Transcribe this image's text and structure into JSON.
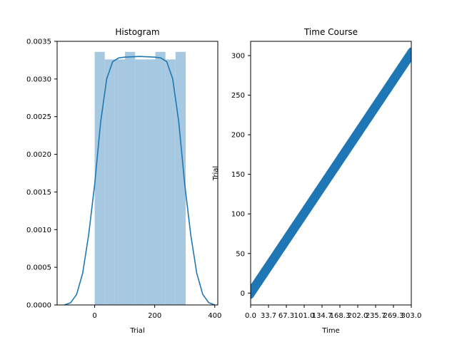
{
  "colors": {
    "bar_fill": "#a6c8e0",
    "line": "#1f77b4",
    "axis": "#000000"
  },
  "chart_data": [
    {
      "type": "bar",
      "title": "Histogram",
      "xlabel": "Trial",
      "ylabel": "",
      "xlim": [
        -125,
        410
      ],
      "ylim": [
        0,
        0.0035
      ],
      "grid": false,
      "xticks": [
        0,
        200,
        400
      ],
      "xtick_labels": [
        "0",
        "200",
        "400"
      ],
      "yticks": [
        0,
        0.0005,
        0.001,
        0.0015,
        0.002,
        0.0025,
        0.003,
        0.0035
      ],
      "ytick_labels": [
        "0.0000",
        "0.0005",
        "0.0010",
        "0.0015",
        "0.0020",
        "0.0025",
        "0.0030",
        "0.0035"
      ],
      "bins": [
        {
          "x0": 0,
          "x1": 33.7,
          "value": 0.00336
        },
        {
          "x0": 33.7,
          "x1": 67.3,
          "value": 0.00326
        },
        {
          "x0": 67.3,
          "x1": 101.0,
          "value": 0.00326
        },
        {
          "x0": 101.0,
          "x1": 134.7,
          "value": 0.00336
        },
        {
          "x0": 134.7,
          "x1": 168.3,
          "value": 0.00326
        },
        {
          "x0": 168.3,
          "x1": 202.0,
          "value": 0.00326
        },
        {
          "x0": 202.0,
          "x1": 235.7,
          "value": 0.00336
        },
        {
          "x0": 235.7,
          "x1": 269.3,
          "value": 0.00326
        },
        {
          "x0": 269.3,
          "x1": 303.0,
          "value": 0.00336
        }
      ],
      "kde": {
        "x": [
          -100,
          -80,
          -60,
          -40,
          -20,
          0,
          20,
          40,
          60,
          80,
          100,
          150,
          200,
          220,
          240,
          260,
          280,
          300,
          320,
          340,
          360,
          380,
          400
        ],
        "y": [
          0.0,
          3e-05,
          0.00014,
          0.00042,
          0.00093,
          0.0016,
          0.00243,
          0.003,
          0.00323,
          0.00328,
          0.00329,
          0.0033,
          0.00329,
          0.00328,
          0.00323,
          0.003,
          0.00243,
          0.0016,
          0.00093,
          0.00042,
          0.00014,
          3e-05,
          0.0
        ]
      }
    },
    {
      "type": "scatter",
      "title": "Time Course",
      "xlabel": "Time",
      "ylabel": "Trial",
      "xlim": [
        0,
        303
      ],
      "ylim": [
        -15,
        318
      ],
      "grid": false,
      "xticks": [
        0,
        33.7,
        67.3,
        101.0,
        134.7,
        168.3,
        202.0,
        235.7,
        269.3,
        303.0
      ],
      "xtick_labels": [
        "0.0",
        "33.7",
        "67.3",
        "101.0",
        "134.7",
        "168.3",
        "202.0",
        "235.7",
        "269.3",
        "303.0"
      ],
      "yticks": [
        0,
        50,
        100,
        150,
        200,
        250,
        300
      ],
      "ytick_labels": [
        "0",
        "50",
        "100",
        "150",
        "200",
        "250",
        "300"
      ],
      "points": {
        "x_start": 0,
        "x_end": 303,
        "count": 304
      }
    }
  ]
}
